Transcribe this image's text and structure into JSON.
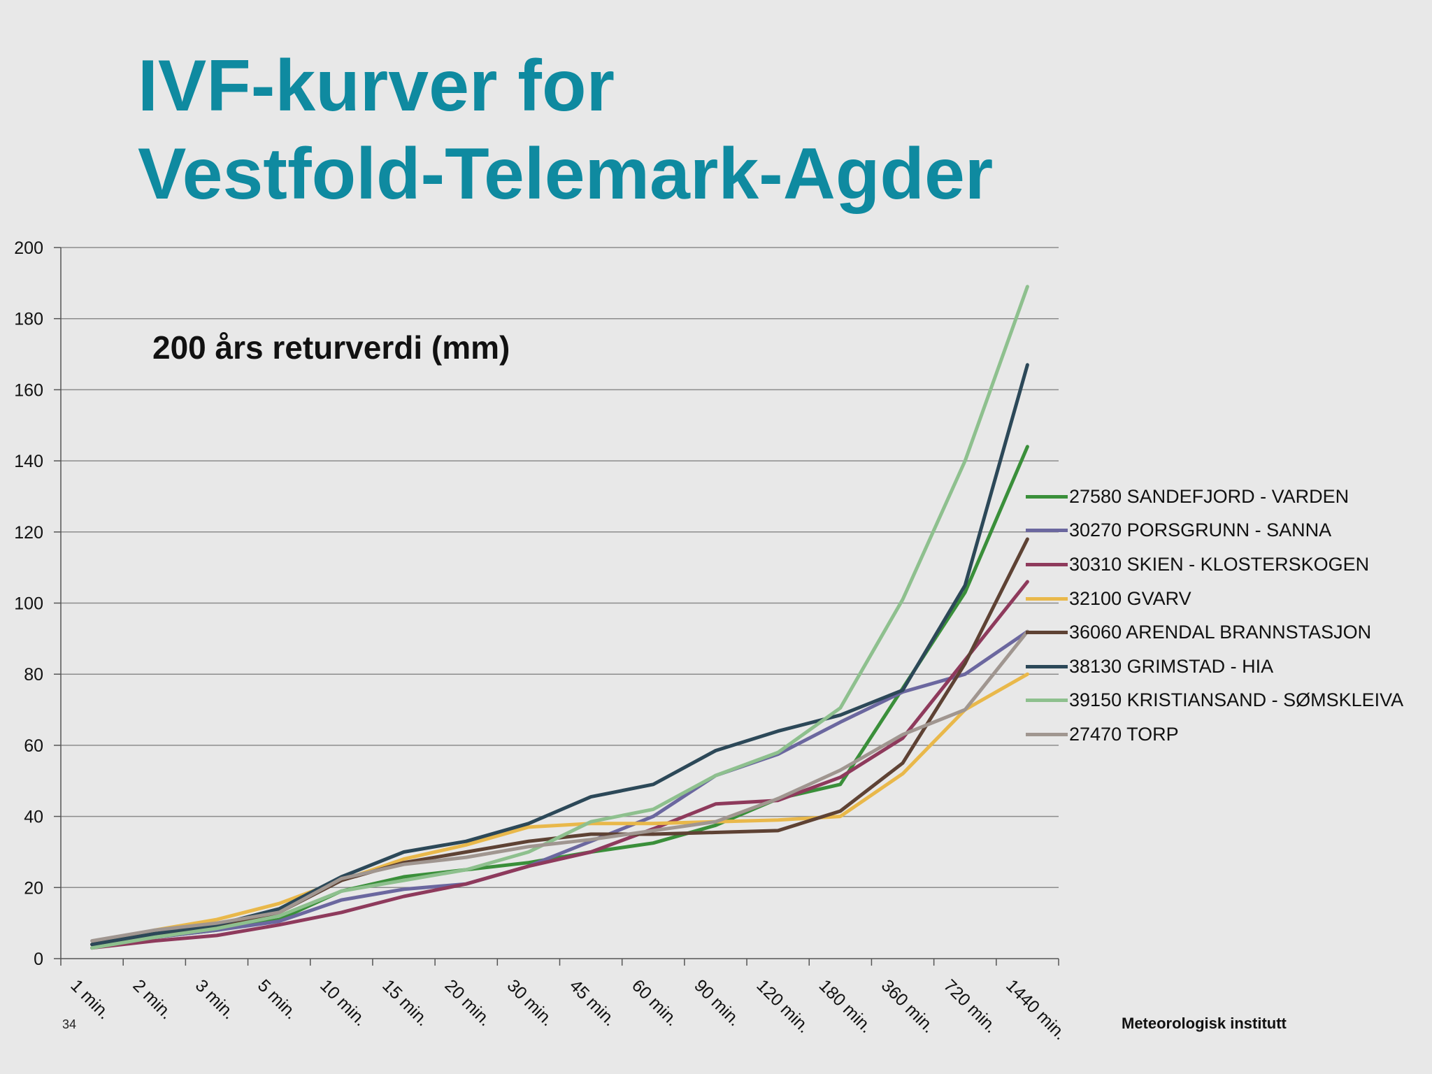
{
  "slide": {
    "title_line1": "IVF-kurver for",
    "title_line2": "Vestfold-Telemark-Agder",
    "number": "34",
    "footer": "Meteorologisk institutt"
  },
  "chart_data": {
    "type": "line",
    "title": "200 års returverdi (mm)",
    "xlabel": "",
    "ylabel": "",
    "ylim": [
      0,
      200
    ],
    "yticks": [
      0,
      20,
      40,
      60,
      80,
      100,
      120,
      140,
      160,
      180,
      200
    ],
    "grid": true,
    "legend_position": "right",
    "categories": [
      "1 min.",
      "2 min.",
      "3 min.",
      "5 min.",
      "10 min.",
      "15 min.",
      "20 min.",
      "30 min.",
      "45 min.",
      "60 min.",
      "90 min.",
      "120 min.",
      "180 min.",
      "360 min.",
      "720 min.",
      "1440 min."
    ],
    "series": [
      {
        "name": "27580 SANDEFJORD - VARDEN",
        "color": "#3a8f3a",
        "values": [
          3,
          6,
          8,
          11,
          19,
          23,
          25,
          27,
          30,
          32.5,
          37.5,
          45,
          49,
          76,
          103,
          144
        ]
      },
      {
        "name": "30270 PORSGRUNN - SANNA",
        "color": "#6b679f",
        "values": [
          4,
          6,
          8,
          10.5,
          16.5,
          19.5,
          21,
          26,
          33,
          40,
          51.5,
          57.5,
          66.5,
          75,
          80,
          92
        ]
      },
      {
        "name": "30310 SKIEN - KLOSTERSKOGEN",
        "color": "#8e3a5c",
        "values": [
          3,
          5,
          6.5,
          9.5,
          13,
          17.5,
          21,
          26,
          30,
          36.5,
          43.5,
          44.5,
          51,
          62,
          84,
          106
        ]
      },
      {
        "name": "32100 GVARV",
        "color": "#e9b84a",
        "values": [
          4,
          8,
          11,
          15.5,
          22,
          28,
          32,
          37,
          38,
          38,
          38.5,
          39,
          40,
          52,
          70,
          80
        ]
      },
      {
        "name": "36060 ARENDAL BRANNSTASJON",
        "color": "#5e4234",
        "values": [
          4,
          7,
          9,
          13,
          22,
          27,
          30,
          33,
          35,
          35,
          35.5,
          36,
          41.5,
          55,
          83,
          118
        ]
      },
      {
        "name": "38130 GRIMSTAD - HIA",
        "color": "#2c4858",
        "values": [
          4,
          7,
          9.5,
          14,
          23,
          30,
          33,
          38,
          45.5,
          49,
          58.5,
          64,
          68.5,
          75.5,
          105,
          167
        ]
      },
      {
        "name": "39150 KRISTIANSAND - SØMSKLEIVA",
        "color": "#8ec08e",
        "values": [
          3,
          6,
          8.5,
          12,
          19,
          22,
          25,
          30,
          38.5,
          42,
          51.5,
          58,
          70.5,
          101,
          140,
          189
        ]
      },
      {
        "name": "27470 TORP",
        "color": "#a09690",
        "values": [
          5,
          8,
          10,
          13,
          22.5,
          26.5,
          28.5,
          31.5,
          33.5,
          36,
          38.5,
          45,
          53,
          63,
          70,
          92
        ]
      }
    ]
  }
}
